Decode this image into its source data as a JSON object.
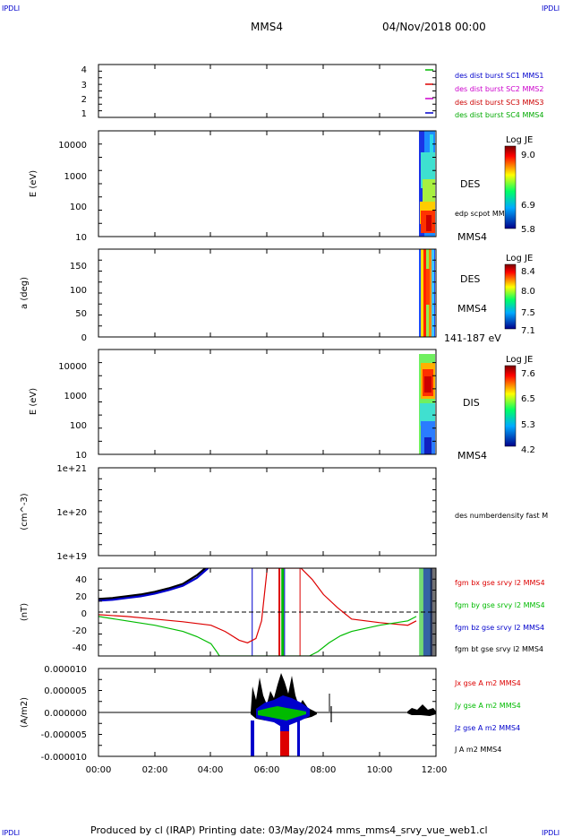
{
  "header": {
    "corner_left_top": "IPDLI",
    "corner_right_top": "IPDLI",
    "corner_left_bottom": "IPDLI",
    "corner_right_bottom": "IPDLI",
    "spacecraft": "MMS4",
    "date": "04/Nov/2018 00:00"
  },
  "footer": {
    "text": "Produced by cl (IRAP)   Printing date: 03/May/2024   mms_mms4_srvy_vue_web1.cl"
  },
  "time_axis": {
    "ticks": [
      "00:00",
      "02:00",
      "04:00",
      "06:00",
      "08:00",
      "10:00",
      "12:00"
    ],
    "range_hours": [
      0,
      12
    ]
  },
  "panels": {
    "p1": {
      "yticks": [
        "4",
        "3",
        "2",
        "1"
      ],
      "legend": [
        {
          "label": "des dist burst SC1 MMS1",
          "color": "#0000cc"
        },
        {
          "label": "des dist burst SC2 MMS2",
          "color": "#cc00cc"
        },
        {
          "label": "des dist burst SC3 MMS3",
          "color": "#cc0000"
        },
        {
          "label": "des dist burst SC4 MMS4",
          "color": "#00aa00"
        }
      ]
    },
    "p2": {
      "ylabel": "E (eV)",
      "yticks": [
        "10000",
        "1000",
        "100",
        "10"
      ],
      "name": "DES",
      "overlay": "edp scpot MMS4",
      "sc": "MMS4",
      "colorbar": {
        "title": "Log JE",
        "ticks": [
          "9.0",
          "6.9",
          "5.8"
        ]
      }
    },
    "p3": {
      "ylabel": "a (deg)",
      "yticks": [
        "150",
        "100",
        "50",
        "0"
      ],
      "name": "DES",
      "sc": "MMS4",
      "energy": "141-187 eV",
      "colorbar": {
        "title": "Log JE",
        "ticks": [
          "8.4",
          "8.0",
          "7.5",
          "7.1"
        ]
      }
    },
    "p4": {
      "ylabel": "E (eV)",
      "yticks": [
        "10000",
        "1000",
        "100",
        "10"
      ],
      "name": "DIS",
      "sc": "MMS4",
      "colorbar": {
        "title": "Log JE",
        "ticks": [
          "7.6",
          "6.5",
          "5.3",
          "4.2"
        ]
      }
    },
    "p5": {
      "ylabel": "(cm^-3)",
      "yticks": [
        "1e+21",
        "1e+20",
        "1e+19"
      ],
      "legend": "des numberdensity fast M"
    },
    "p6": {
      "ylabel": "(nT)",
      "yticks": [
        "40",
        "20",
        "0",
        "-20",
        "-40"
      ],
      "legend": [
        {
          "label": "fgm bx gse srvy l2 MMS4",
          "color": "#dd0000"
        },
        {
          "label": "fgm by gse srvy l2 MMS4",
          "color": "#00bb00"
        },
        {
          "label": "fgm bz gse srvy l2 MMS4",
          "color": "#0000cc"
        },
        {
          "label": "fgm bt gse srvy l2 MMS4",
          "color": "#000000"
        }
      ]
    },
    "p7": {
      "ylabel": "(A/m2)",
      "yticks": [
        "0.000010",
        "0.000005",
        "0.000000",
        "-0.000005",
        "-0.000010"
      ],
      "legend": [
        {
          "label": "Jx gse A m2 MMS4",
          "color": "#dd0000"
        },
        {
          "label": "Jy gse A m2 MMS4",
          "color": "#00bb00"
        },
        {
          "label": "Jz gse A m2 MMS4",
          "color": "#0000cc"
        },
        {
          "label": "J A m2 MMS4",
          "color": "#000000"
        }
      ]
    }
  },
  "chart_data": [
    {
      "type": "heatmap",
      "ylabel": "E (eV)",
      "yscale": "log",
      "ylim": [
        10,
        30000
      ],
      "data_window_hours": [
        11.3,
        11.9
      ],
      "colorbar_label": "Log JE",
      "colorbar_range": [
        5.8,
        9.0
      ]
    },
    {
      "type": "heatmap",
      "ylabel": "a (deg)",
      "ylim": [
        0,
        180
      ],
      "data_window_hours": [
        11.3,
        11.9
      ],
      "colorbar_label": "Log JE",
      "colorbar_range": [
        7.1,
        8.4
      ]
    },
    {
      "type": "heatmap",
      "ylabel": "E (eV)",
      "yscale": "log",
      "ylim": [
        10,
        30000
      ],
      "data_window_hours": [
        11.3,
        11.9
      ],
      "colorbar_label": "Log JE",
      "colorbar_range": [
        4.2,
        7.6
      ]
    },
    {
      "type": "line",
      "ylabel": "(nT)",
      "ylim": [
        -50,
        50
      ],
      "xlim": [
        0,
        12
      ],
      "series": [
        {
          "name": "fgm bt gse srvy l2 MMS4",
          "color": "#000000",
          "x": [
            0,
            0.5,
            1,
            1.5,
            2,
            2.5,
            3,
            3.5,
            3.8
          ],
          "y": [
            15,
            16,
            18,
            20,
            23,
            27,
            32,
            42,
            50
          ]
        },
        {
          "name": "fgm bz gse srvy l2 MMS4",
          "color": "#0000cc",
          "x": [
            0,
            0.5,
            1,
            1.5,
            2,
            2.5,
            3,
            3.5,
            3.9
          ],
          "y": [
            13,
            14,
            16,
            18,
            21,
            25,
            30,
            39,
            50
          ]
        },
        {
          "name": "fgm bx gse srvy l2 MMS4",
          "color": "#dd0000",
          "x": [
            0,
            1,
            2,
            3,
            4,
            4.5,
            5,
            5.3,
            5.6,
            5.8,
            6.0,
            7.2,
            7.6,
            8,
            8.5,
            9,
            10,
            11,
            11.3
          ],
          "y": [
            -3,
            -5,
            -8,
            -11,
            -15,
            -22,
            -32,
            -35,
            -30,
            -10,
            50,
            50,
            37,
            20,
            5,
            -8,
            -12,
            -15,
            -10
          ]
        },
        {
          "name": "fgm by gse srvy l2 MMS4",
          "color": "#00bb00",
          "x": [
            0,
            1,
            2,
            3,
            3.5,
            4,
            4.2,
            4.3,
            7.5,
            7.8,
            8.2,
            8.6,
            9,
            10,
            11,
            11.3
          ],
          "y": [
            -5,
            -10,
            -15,
            -22,
            -28,
            -36,
            -45,
            -50,
            -50,
            -45,
            -35,
            -27,
            -22,
            -15,
            -10,
            -5
          ]
        }
      ],
      "reference_line_y": 0
    },
    {
      "type": "line",
      "ylabel": "(A/m2)",
      "ylim": [
        -1e-05,
        1e-05
      ],
      "xlim": [
        0,
        12
      ],
      "series": [
        {
          "name": "J A m2 MMS4",
          "color": "#000000"
        },
        {
          "name": "Jz gse A m2 MMS4",
          "color": "#0000cc"
        },
        {
          "name": "Jy gse A m2 MMS4",
          "color": "#00bb00"
        },
        {
          "name": "Jx gse A m2 MMS4",
          "color": "#dd0000"
        }
      ],
      "activity_window_hours": [
        5.5,
        8.3
      ]
    }
  ]
}
